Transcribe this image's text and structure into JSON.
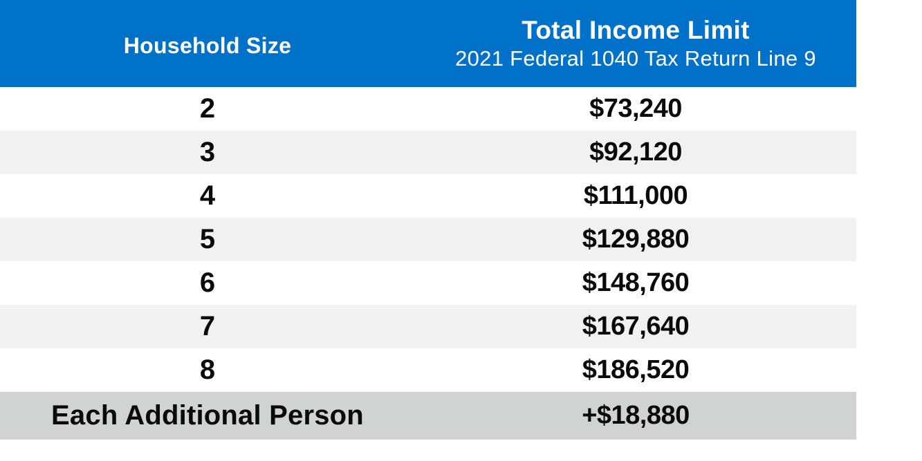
{
  "table": {
    "header": {
      "col1": "Household Size",
      "col2_title": "Total Income Limit",
      "col2_subtitle": "2021 Federal 1040 Tax Return Line 9"
    },
    "rows": [
      {
        "size": "2",
        "limit": "$73,240"
      },
      {
        "size": "3",
        "limit": "$92,120"
      },
      {
        "size": "4",
        "limit": "$111,000"
      },
      {
        "size": "5",
        "limit": "$129,880"
      },
      {
        "size": "6",
        "limit": "$148,760"
      },
      {
        "size": "7",
        "limit": "$167,640"
      },
      {
        "size": "8",
        "limit": "$186,520"
      }
    ],
    "footer": {
      "label": "Each Additional Person",
      "value": "+$18,880"
    }
  },
  "colors": {
    "header_bg": "#0071c9",
    "header_text": "#ffffff",
    "stripe_bg": "#f1f1f2",
    "footer_bg": "#d0d3d4",
    "body_text": "#0a0a0a"
  },
  "chart_data": {
    "type": "table",
    "title": "Total Income Limit",
    "subtitle": "2021 Federal 1040 Tax Return Line 9",
    "columns": [
      "Household Size",
      "Total Income Limit (2021 Federal 1040 Tax Return Line 9)"
    ],
    "categories": [
      "2",
      "3",
      "4",
      "5",
      "6",
      "7",
      "8",
      "Each Additional Person"
    ],
    "values": [
      73240,
      92120,
      111000,
      129880,
      148760,
      167640,
      186520,
      18880
    ],
    "value_labels": [
      "$73,240",
      "$92,120",
      "$111,000",
      "$129,880",
      "$148,760",
      "$167,640",
      "$186,520",
      "+$18,880"
    ],
    "notes": "Income limit increases by $18,880 for each additional person beyond household size 8"
  }
}
